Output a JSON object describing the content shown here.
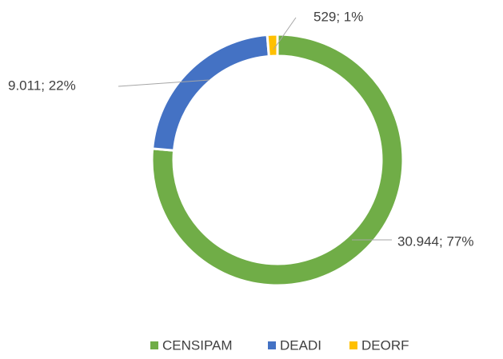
{
  "chart_data": {
    "type": "pie",
    "categories": [
      "CENSIPAM",
      "DEADI",
      "DEORF"
    ],
    "values": [
      30944,
      9011,
      529
    ],
    "value_labels": [
      "30.944; 77%",
      "9.011; 22%",
      "529; 1%"
    ],
    "colors": [
      "#70ad47",
      "#4472c4",
      "#ffc000"
    ],
    "donut": true,
    "legend": "bottom"
  }
}
